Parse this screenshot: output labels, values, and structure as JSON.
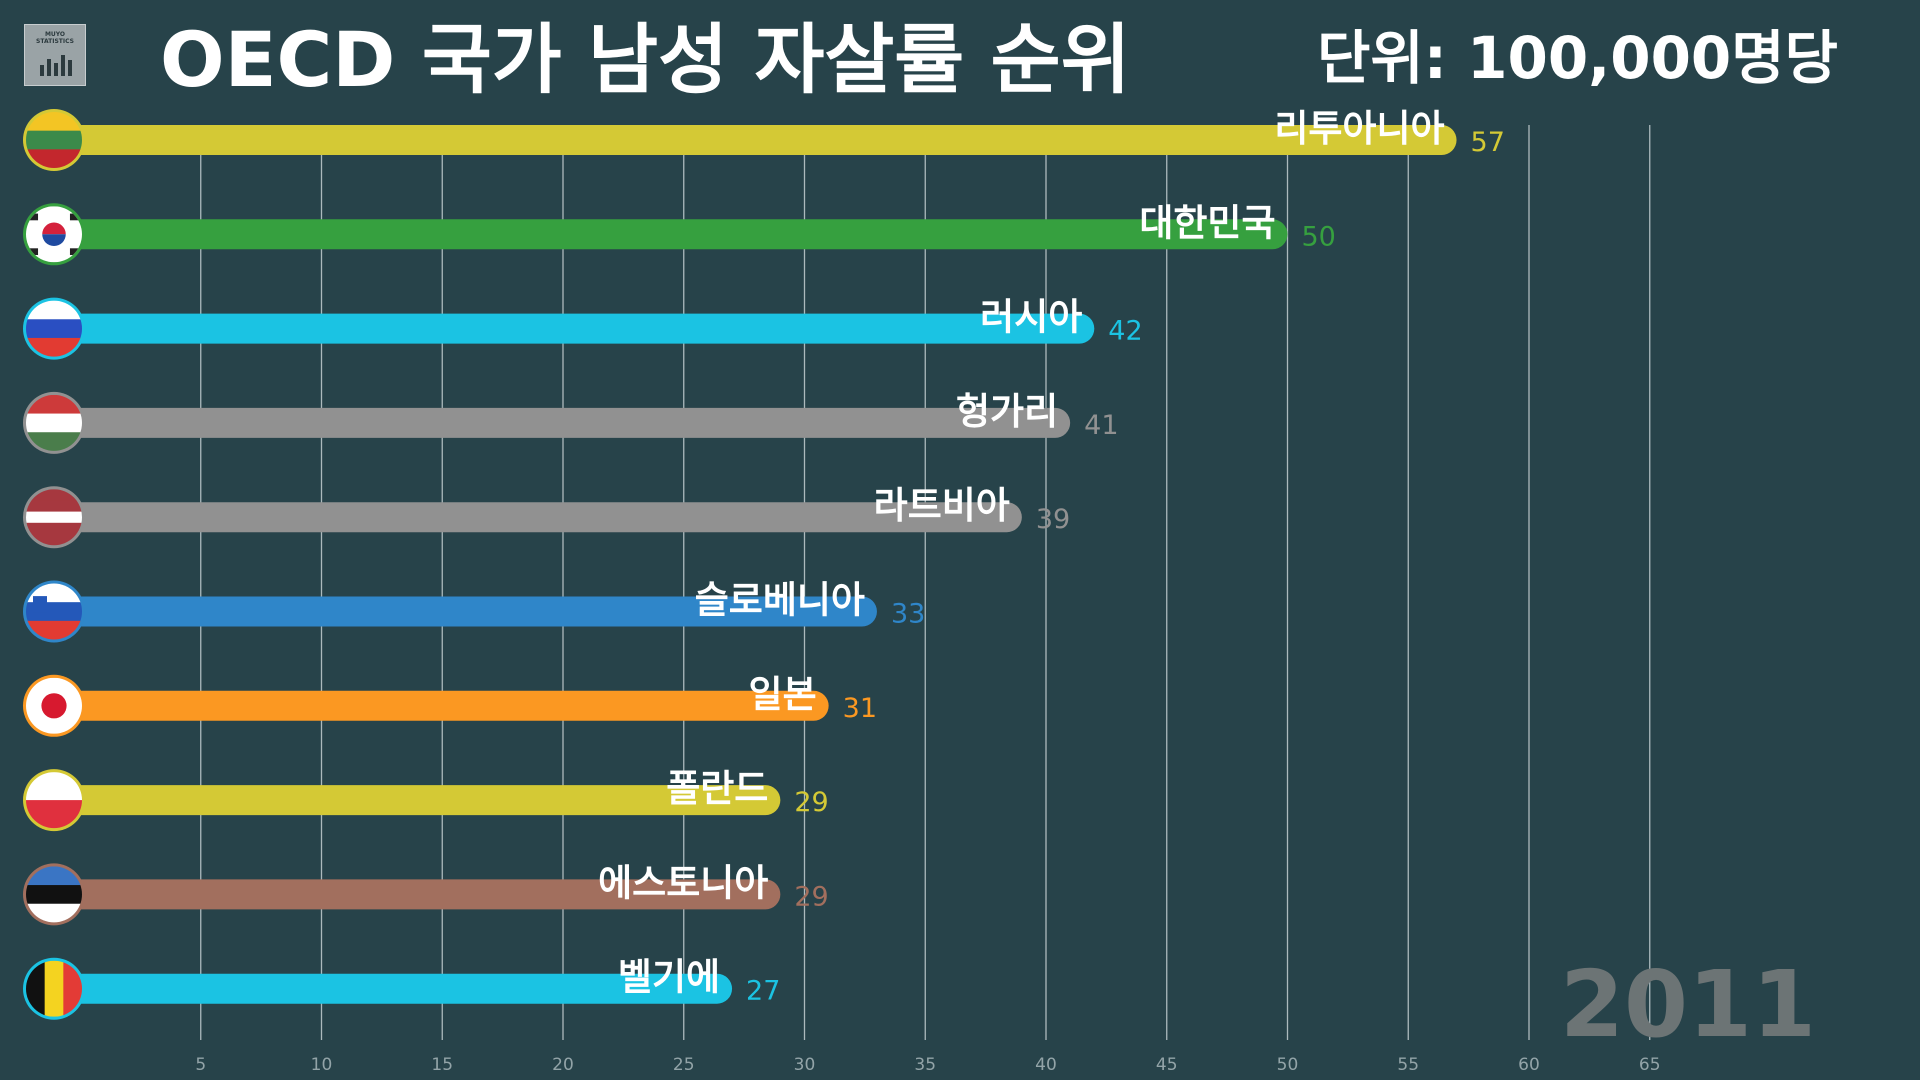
{
  "logo": {
    "line1": "MUYO",
    "line2": "STATISTICS"
  },
  "header": {
    "title": "OECD 국가 남성 자살률 순위",
    "unit": "단위: 100,000명당"
  },
  "year": "2011",
  "chart_data": {
    "type": "bar",
    "orientation": "horizontal",
    "title": "OECD 국가 남성 자살률 순위",
    "unit": "단위: 100,000명당",
    "year": "2011",
    "categories": [
      "리투아니아",
      "대한민국",
      "러시아",
      "헝가리",
      "라트비아",
      "슬로베니아",
      "일본",
      "폴란드",
      "에스토니아",
      "벨기에"
    ],
    "values": [
      57,
      50,
      42,
      41,
      39,
      33,
      31,
      29,
      29,
      27
    ],
    "value_labels": [
      "57",
      "50",
      "42",
      "41",
      "39",
      "33",
      "31",
      "29",
      "29",
      "27"
    ],
    "colors": [
      "#d4c935",
      "#36a03f",
      "#1bc3e3",
      "#919191",
      "#919191",
      "#2f86c9",
      "#fb9822",
      "#d4c935",
      "#a26f5e",
      "#1bc3e3"
    ],
    "flags": [
      "lithuania-flag",
      "south-korea-flag",
      "russia-flag",
      "hungary-flag",
      "latvia-flag",
      "slovenia-flag",
      "japan-flag",
      "poland-flag",
      "estonia-flag",
      "belgium-flag"
    ],
    "xlim": [
      0,
      65
    ],
    "xticks": [
      5,
      10,
      15,
      20,
      25,
      30,
      35,
      40,
      45,
      50,
      55,
      60,
      65
    ],
    "grid": true
  }
}
